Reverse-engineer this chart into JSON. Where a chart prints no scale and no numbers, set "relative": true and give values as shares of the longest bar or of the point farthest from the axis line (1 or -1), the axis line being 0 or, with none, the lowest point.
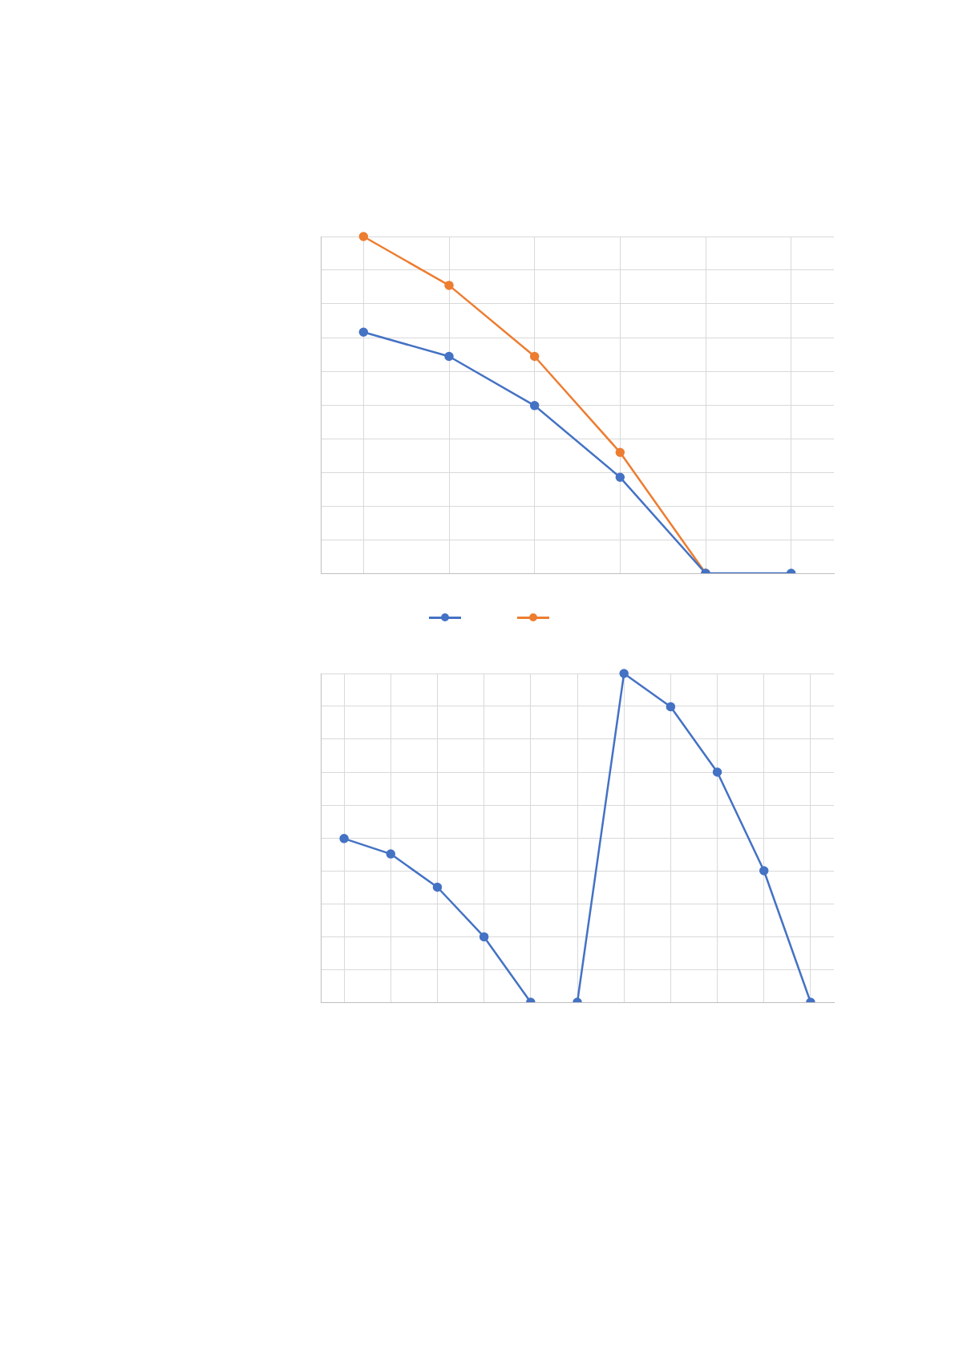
{
  "chart_data": [
    {
      "type": "line",
      "relative": true,
      "categories": [
        null,
        null,
        null,
        null,
        null,
        null
      ],
      "tick_labels": false,
      "grid": true,
      "marker": "circle",
      "line_style": "solid",
      "series": [
        {
          "color": "#4472c4",
          "values": [
            0.716,
            0.644,
            0.498,
            0.285,
            0,
            0
          ]
        },
        {
          "color": "#ed7d31",
          "values": [
            1,
            0.855,
            0.644,
            0.359,
            0,
            null
          ]
        }
      ]
    },
    {
      "type": "line",
      "relative": true,
      "categories": [
        null,
        null,
        null,
        null,
        null,
        null,
        null,
        null,
        null,
        null,
        null
      ],
      "tick_labels": false,
      "grid": true,
      "marker": "circle",
      "line_style": "solid",
      "series": [
        {
          "color": "#4472c4",
          "values": [
            0.498,
            0.451,
            0.35,
            0.199,
            0,
            null,
            null,
            null,
            null,
            null,
            null
          ]
        },
        {
          "color": "#4472c4",
          "values": [
            null,
            null,
            null,
            null,
            null,
            0,
            1,
            0.899,
            0.7,
            0.4,
            0
          ]
        }
      ]
    }
  ]
}
